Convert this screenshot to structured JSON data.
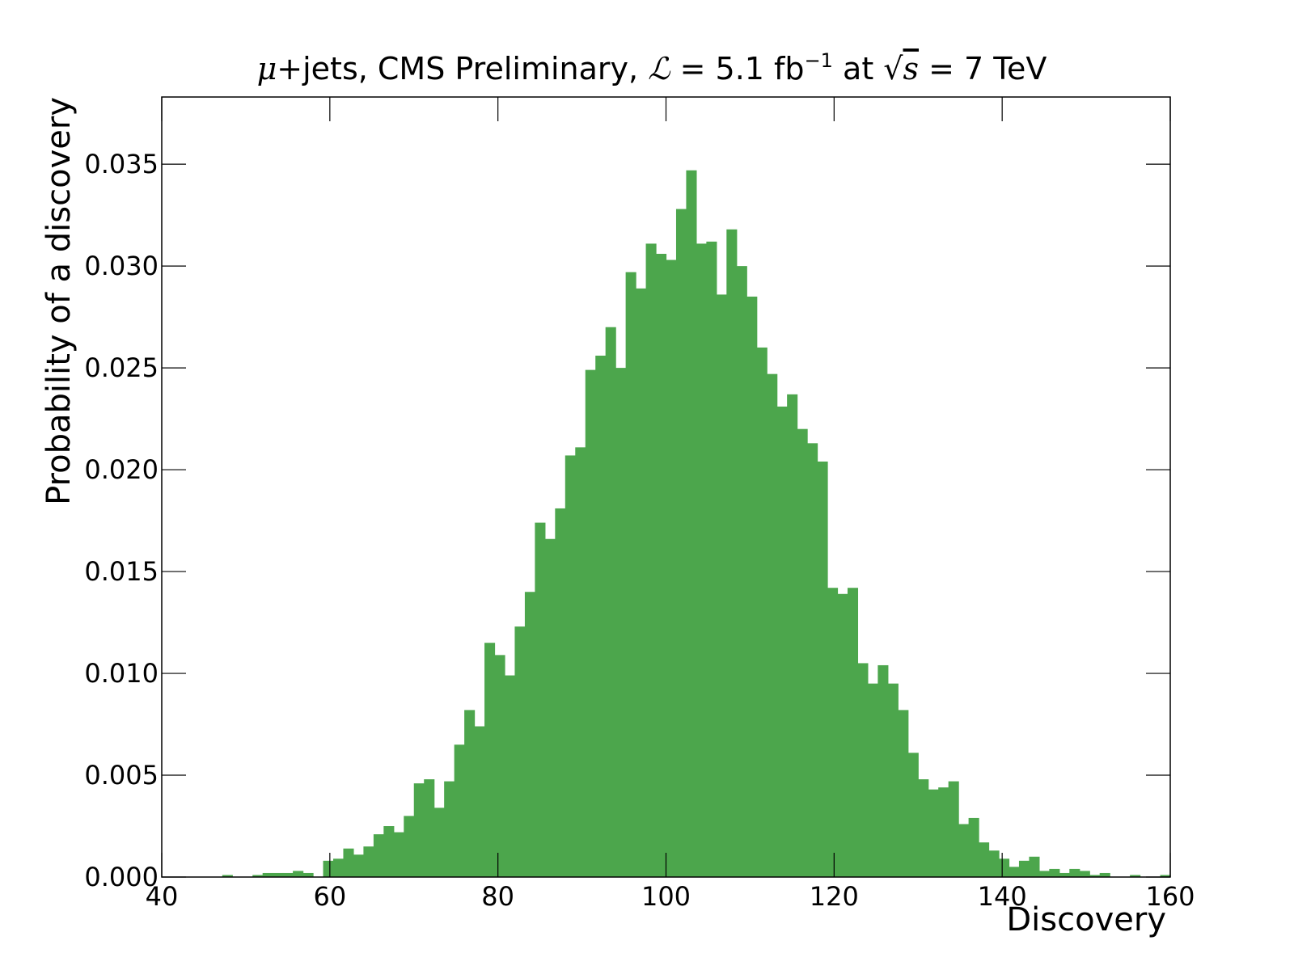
{
  "chart_data": {
    "type": "bar",
    "title": {
      "mu": "μ",
      "part1": "+jets, CMS Preliminary, ",
      "lum": "ℒ",
      "part2": " = 5.1 fb",
      "exp": "−1",
      "part3": " at ",
      "sqrt": "√",
      "s": "s",
      "part4": " = 7 TeV"
    },
    "xlabel": "Discovery",
    "ylabel": "Probability of a discovery",
    "xlim": [
      40,
      160
    ],
    "ylim": [
      0,
      0.0383
    ],
    "xticks": [
      40,
      60,
      80,
      100,
      120,
      140,
      160
    ],
    "xtick_labels": [
      "40",
      "60",
      "80",
      "100",
      "120",
      "140",
      "160"
    ],
    "yticks": [
      0,
      0.005,
      0.01,
      0.015,
      0.02,
      0.025,
      0.03,
      0.035
    ],
    "ytick_labels": [
      "0.000",
      "0.005",
      "0.010",
      "0.015",
      "0.020",
      "0.025",
      "0.030",
      "0.035"
    ],
    "grid": false,
    "bin_start": 40.0,
    "bin_width": 1.2,
    "bar_color": "#4ca64c",
    "values": [
      0,
      0,
      0,
      0,
      0,
      0,
      0.0001,
      0,
      0,
      0.0001,
      0.0002,
      0.0002,
      0.0002,
      0.0003,
      0.0002,
      0,
      0.0008,
      0.0009,
      0.0014,
      0.0011,
      0.0015,
      0.0021,
      0.0025,
      0.0022,
      0.003,
      0.0046,
      0.0048,
      0.0034,
      0.0047,
      0.0065,
      0.0082,
      0.0074,
      0.0115,
      0.0109,
      0.0099,
      0.0123,
      0.014,
      0.0174,
      0.0166,
      0.0181,
      0.0207,
      0.0211,
      0.0249,
      0.0256,
      0.027,
      0.025,
      0.0297,
      0.0289,
      0.0311,
      0.0306,
      0.0303,
      0.0328,
      0.0347,
      0.0311,
      0.0312,
      0.0286,
      0.0318,
      0.03,
      0.0285,
      0.026,
      0.0247,
      0.0231,
      0.0237,
      0.022,
      0.0213,
      0.0204,
      0.0142,
      0.0139,
      0.0142,
      0.0105,
      0.0095,
      0.0104,
      0.0095,
      0.0082,
      0.0061,
      0.0048,
      0.0043,
      0.0044,
      0.0047,
      0.0026,
      0.0029,
      0.0017,
      0.0013,
      0.0009,
      0.0005,
      0.0008,
      0.001,
      0.0003,
      0.0004,
      0.0002,
      0.0004,
      0.0003,
      0.0001,
      0.0002,
      0,
      0,
      0.0001,
      0,
      0,
      0.0001
    ]
  }
}
